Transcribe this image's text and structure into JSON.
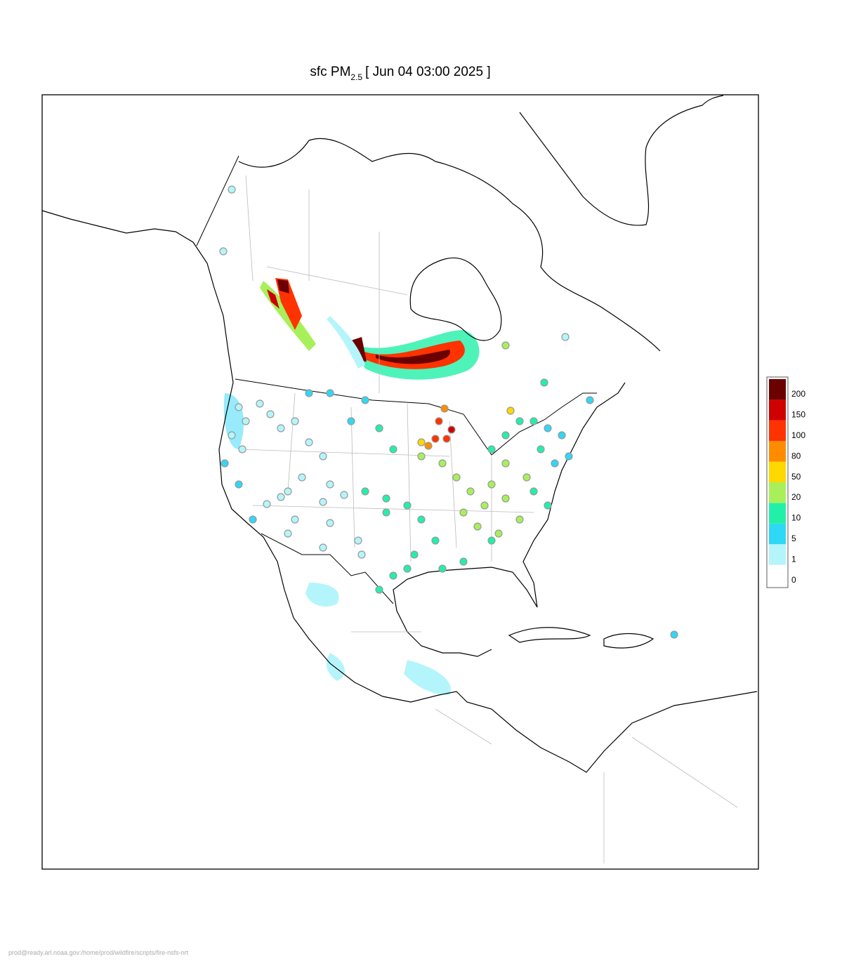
{
  "title": {
    "main": "sfc PM",
    "subscript": "2.5",
    "time": "[ Jun 04 03:00 2025 ]"
  },
  "legend": {
    "levels": [
      0,
      1,
      5,
      10,
      20,
      50,
      80,
      100,
      150,
      200
    ],
    "colors": [
      "#ffffff",
      "#b4f5fb",
      "#2fd8f5",
      "#22f0a8",
      "#a8f05a",
      "#ffd800",
      "#ff8c00",
      "#ff3200",
      "#d00000",
      "#6b0000"
    ]
  },
  "stations": {
    "values": [
      3,
      3,
      3,
      3,
      3,
      3,
      3,
      3,
      3,
      3,
      3,
      3,
      3,
      3,
      3,
      3,
      3,
      3,
      3,
      3,
      3,
      3,
      3,
      7,
      7,
      7,
      7,
      7,
      7,
      7,
      12,
      12,
      12,
      12,
      12,
      12,
      12,
      12,
      12,
      12,
      12,
      12,
      12,
      12,
      25,
      25,
      25,
      25,
      25,
      25,
      25,
      25,
      25,
      25,
      25,
      25,
      25,
      120,
      140,
      110,
      85,
      60,
      160,
      90,
      60,
      12,
      7,
      6,
      11,
      8,
      7,
      12,
      10,
      14,
      13,
      15,
      15,
      25,
      3,
      8,
      2,
      2,
      6,
      15
    ]
  },
  "footer": "prod@ready.arl.noaa.gov:/home/prod/wildfire/scripts/fire-nsfs-nrt"
}
